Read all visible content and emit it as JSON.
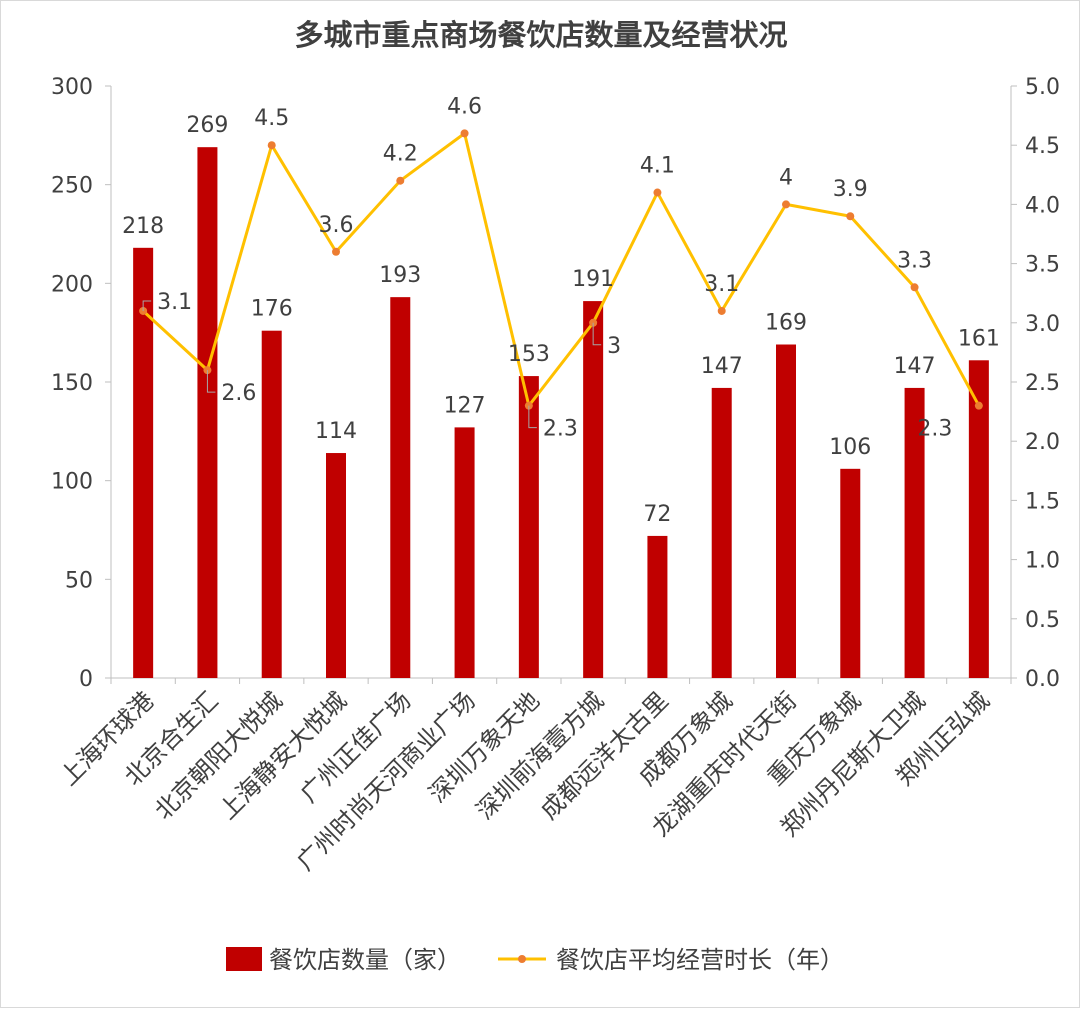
{
  "chart_data": {
    "type": "bar",
    "title": "多城市重点商场餐饮店数量及经营状况",
    "categories": [
      "上海环球港",
      "北京合生汇",
      "北京朝阳大悦城",
      "上海静安大悦城",
      "广州正佳广场",
      "广州时尚天河商业广场",
      "深圳万象天地",
      "深圳前海壹方城",
      "成都远洋太古里",
      "成都万象城",
      "龙湖重庆时代天街",
      "重庆万象城",
      "郑州丹尼斯大卫城",
      "郑州正弘城"
    ],
    "series": [
      {
        "name": "餐饮店数量（家）",
        "type": "bar",
        "axis": "left",
        "color": "#c00000",
        "values": [
          218,
          269,
          176,
          114,
          193,
          127,
          153,
          191,
          72,
          147,
          169,
          106,
          147,
          161
        ]
      },
      {
        "name": "餐饮店平均经营时长（年）",
        "type": "line",
        "axis": "right",
        "color": "#ffc000",
        "marker_color": "#ed7d31",
        "values": [
          3.1,
          2.6,
          4.5,
          3.6,
          4.2,
          4.6,
          2.3,
          3,
          4.1,
          3.1,
          4,
          3.9,
          3.3,
          2.3
        ]
      }
    ],
    "y_left": {
      "range": [
        0,
        300
      ],
      "ticks": [
        "0",
        "50",
        "100",
        "150",
        "200",
        "250",
        "300"
      ]
    },
    "y_right": {
      "range": [
        0,
        5
      ],
      "ticks": [
        "0.0",
        "0.5",
        "1.0",
        "1.5",
        "2.0",
        "2.5",
        "3.0",
        "3.5",
        "4.0",
        "4.5",
        "5.0"
      ]
    },
    "legend_position": "bottom",
    "grid": false
  }
}
